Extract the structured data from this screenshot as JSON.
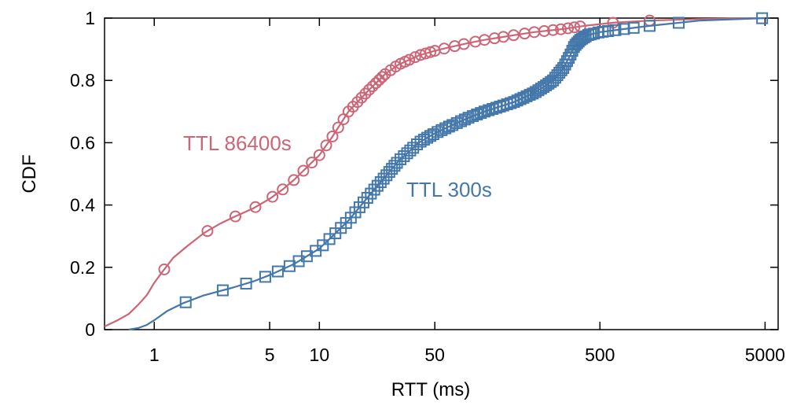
{
  "chart_data": {
    "type": "line",
    "xlabel": "RTT (ms)",
    "ylabel": "CDF",
    "xscale": "log",
    "xlim": [
      0.5,
      6000
    ],
    "ylim": [
      0,
      1
    ],
    "grid": false,
    "xticks": [
      1,
      5,
      10,
      50,
      500,
      5000
    ],
    "xtick_labels": [
      "1",
      "5",
      "10",
      "50",
      "500",
      "5000"
    ],
    "yticks": [
      0,
      0.2,
      0.4,
      0.6,
      0.8,
      1
    ],
    "ytick_labels": [
      "0",
      "0.2",
      "0.4",
      "0.6",
      "0.8",
      "1"
    ],
    "series": [
      {
        "name": "TTL 86400s",
        "color": "#cc6677",
        "marker": "circle",
        "x": [
          0.5,
          0.6,
          0.7,
          0.8,
          0.9,
          1.0,
          1.1,
          1.3,
          1.6,
          2.0,
          2.5,
          3.0,
          4.0,
          5.0,
          6.0,
          7.0,
          8.0,
          10,
          12,
          15,
          20,
          25,
          30,
          40,
          50,
          60,
          80,
          100,
          150,
          200,
          300,
          400,
          600,
          1000,
          2000,
          5000
        ],
        "y": [
          0.01,
          0.03,
          0.05,
          0.08,
          0.11,
          0.15,
          0.18,
          0.23,
          0.27,
          0.31,
          0.34,
          0.36,
          0.39,
          0.42,
          0.45,
          0.48,
          0.51,
          0.56,
          0.62,
          0.7,
          0.77,
          0.82,
          0.85,
          0.88,
          0.895,
          0.905,
          0.92,
          0.93,
          0.945,
          0.955,
          0.965,
          0.975,
          0.985,
          0.992,
          0.997,
          1.0
        ],
        "markers_x": [
          1.15,
          2.1,
          3.1,
          4.1,
          5.2,
          6.0,
          7.0,
          8.0,
          9.0,
          10,
          11,
          12,
          13,
          14,
          15,
          16,
          17,
          18,
          19,
          20,
          21,
          22,
          23,
          24,
          25,
          27,
          29,
          31,
          33,
          35,
          38,
          41,
          44,
          47,
          50,
          57,
          66,
          75,
          88,
          100,
          115,
          130,
          150,
          175,
          200,
          230,
          260,
          290,
          320,
          350,
          380,
          600,
          1000
        ],
        "label": "TTL 86400s"
      },
      {
        "name": "TTL 300s",
        "color": "#4477aa",
        "marker": "square",
        "x": [
          0.7,
          0.8,
          0.9,
          1.0,
          1.2,
          1.5,
          2.0,
          3.0,
          4.0,
          5.0,
          7.0,
          10,
          12,
          15,
          20,
          25,
          30,
          40,
          50,
          60,
          80,
          100,
          150,
          200,
          230,
          260,
          300,
          330,
          350,
          380,
          420,
          500,
          700,
          1000,
          2000,
          5000
        ],
        "y": [
          0.0,
          0.005,
          0.015,
          0.03,
          0.06,
          0.085,
          0.11,
          0.135,
          0.155,
          0.175,
          0.21,
          0.26,
          0.3,
          0.35,
          0.43,
          0.49,
          0.54,
          0.6,
          0.63,
          0.65,
          0.68,
          0.7,
          0.73,
          0.76,
          0.78,
          0.8,
          0.84,
          0.88,
          0.91,
          0.93,
          0.945,
          0.955,
          0.965,
          0.975,
          0.992,
          1.0
        ],
        "markers_x": [
          1.55,
          2.6,
          3.6,
          4.7,
          5.6,
          6.6,
          7.5,
          8.4,
          9.5,
          10.5,
          11.5,
          12.5,
          13.5,
          14.5,
          15.5,
          16.5,
          17.5,
          18.5,
          19.5,
          20.5,
          21.5,
          22.5,
          23.5,
          24.5,
          25.5,
          26.5,
          27.5,
          28.5,
          29.5,
          31,
          32.5,
          34,
          35.5,
          37,
          39,
          41,
          43,
          45,
          47,
          49,
          52,
          55,
          58,
          61,
          64,
          68,
          72,
          76,
          80,
          85,
          90,
          95,
          100,
          106,
          112,
          118,
          124,
          130,
          137,
          144,
          151,
          158,
          165,
          172,
          180,
          188,
          196,
          204,
          212,
          220,
          228,
          236,
          244,
          252,
          260,
          268,
          276,
          284,
          292,
          300,
          308,
          316,
          324,
          332,
          340,
          348,
          356,
          364,
          372,
          380,
          390,
          400,
          410,
          425,
          440,
          460,
          490,
          520,
          560,
          620,
          700,
          800,
          1000,
          1500,
          4800
        ],
        "label": "TTL 300s"
      }
    ]
  }
}
